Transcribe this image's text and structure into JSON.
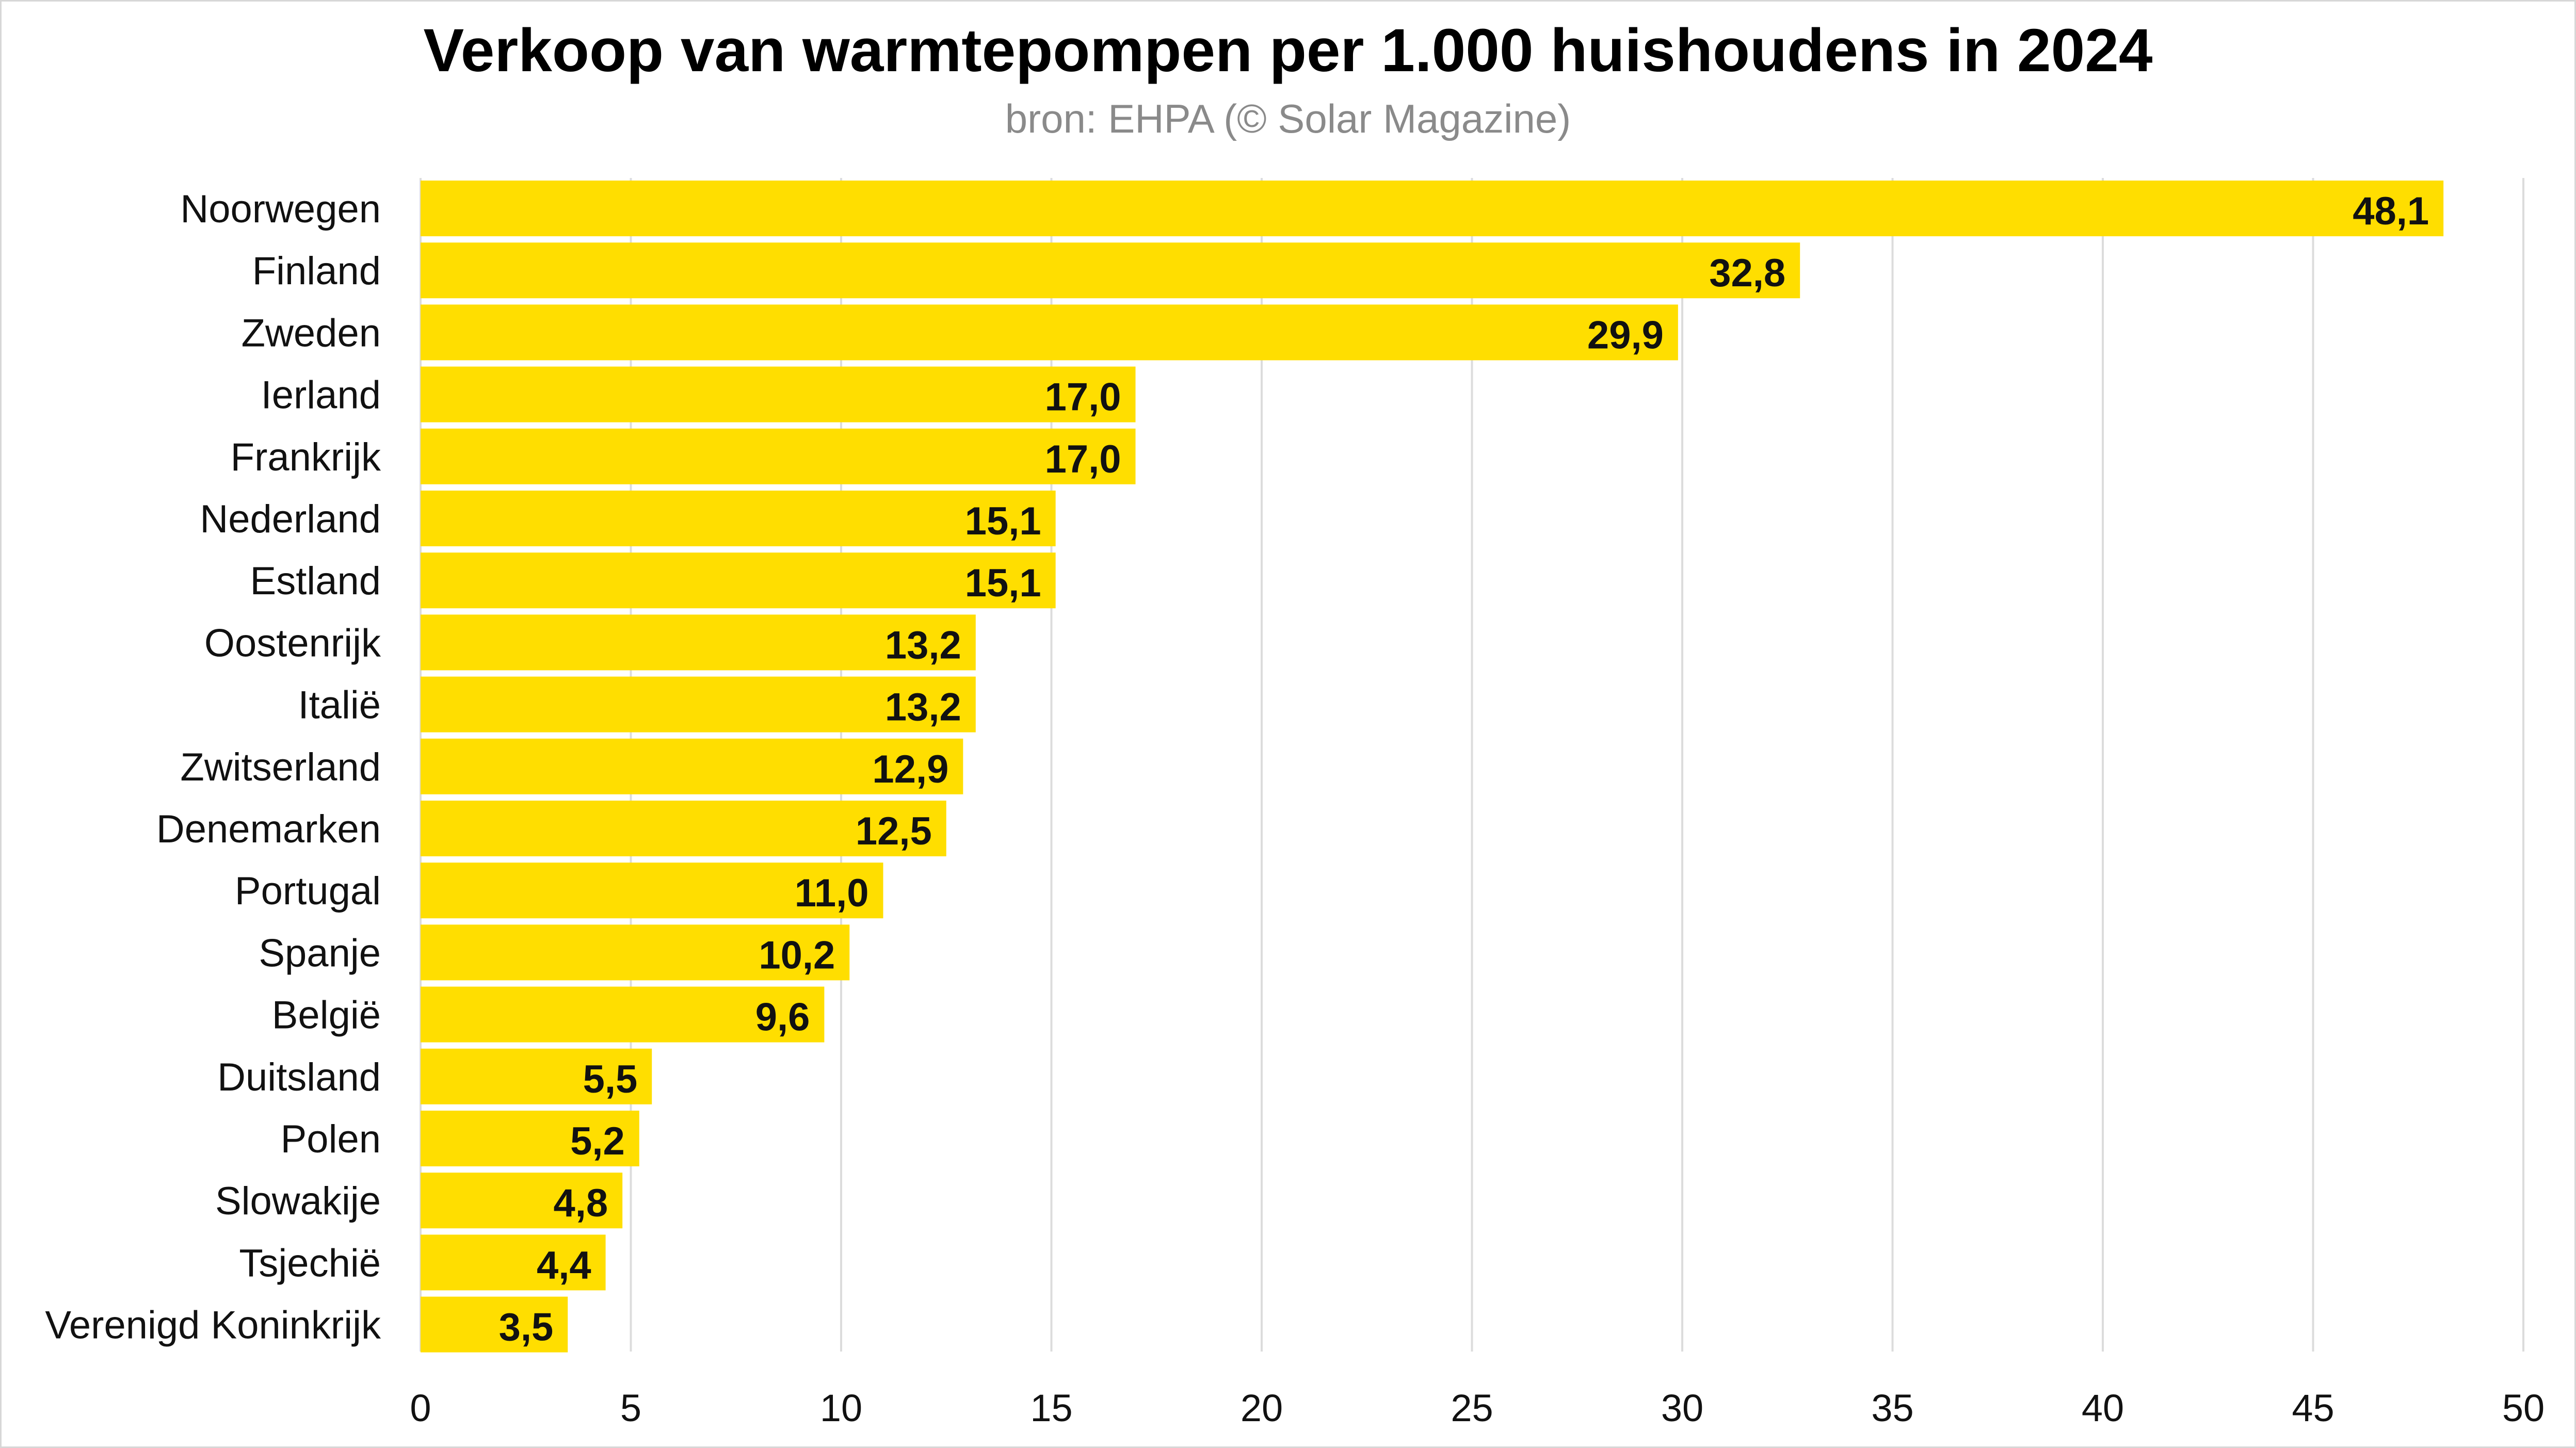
{
  "chart_data": {
    "type": "bar",
    "orientation": "horizontal",
    "title": "Verkoop van warmtepompen per 1.000 huishoudens in 2024",
    "subtitle": "bron: EHPA (© Solar Magazine)",
    "categories": [
      "Noorwegen",
      "Finland",
      "Zweden",
      "Ierland",
      "Frankrijk",
      "Nederland",
      "Estland",
      "Oostenrijk",
      "Italië",
      "Zwitserland",
      "Denemarken",
      "Portugal",
      "Spanje",
      "België",
      "Duitsland",
      "Polen",
      "Slowakije",
      "Tsjechië",
      "Verenigd Koninkrijk"
    ],
    "values": [
      48.1,
      32.8,
      29.9,
      17.0,
      17.0,
      15.1,
      15.1,
      13.2,
      13.2,
      12.9,
      12.5,
      11.0,
      10.2,
      9.6,
      5.5,
      5.2,
      4.8,
      4.4,
      3.5
    ],
    "value_labels": [
      "48,1",
      "32,8",
      "29,9",
      "17,0",
      "17,0",
      "15,1",
      "15,1",
      "13,2",
      "13,2",
      "12,9",
      "12,5",
      "11,0",
      "10,2",
      "9,6",
      "5,5",
      "5,2",
      "4,8",
      "4,4",
      "3,5"
    ],
    "x_ticks": [
      "0",
      "5",
      "10",
      "15",
      "20",
      "25",
      "30",
      "35",
      "40",
      "45",
      "50"
    ],
    "xlim": [
      0,
      50
    ],
    "xlabel": "",
    "ylabel": "",
    "grid": "vertical",
    "legend": "none",
    "bar_color": "#ffde00",
    "grid_color": "#dcdcdc"
  }
}
